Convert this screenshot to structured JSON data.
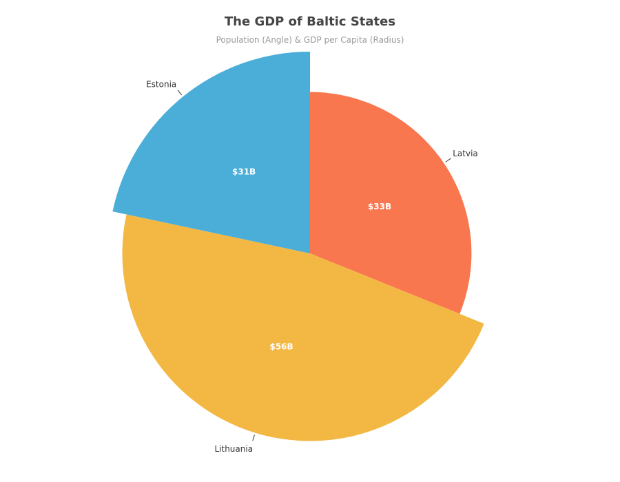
{
  "chart_data": {
    "type": "pie",
    "title": "The GDP of Baltic States",
    "subtitle": "Population (Angle) & GDP per Capita (Radius)",
    "slices": [
      {
        "label": "Latvia",
        "value_label": "$33B",
        "angle_deg": 112,
        "radius_rel": 0.8,
        "color": "#f9774f"
      },
      {
        "label": "Lithuania",
        "value_label": "$56B",
        "angle_deg": 170,
        "radius_rel": 0.93,
        "color": "#f3b844"
      },
      {
        "label": "Estonia",
        "value_label": "$31B",
        "angle_deg": 78,
        "radius_rel": 1.0,
        "color": "#4aaed9"
      }
    ]
  }
}
